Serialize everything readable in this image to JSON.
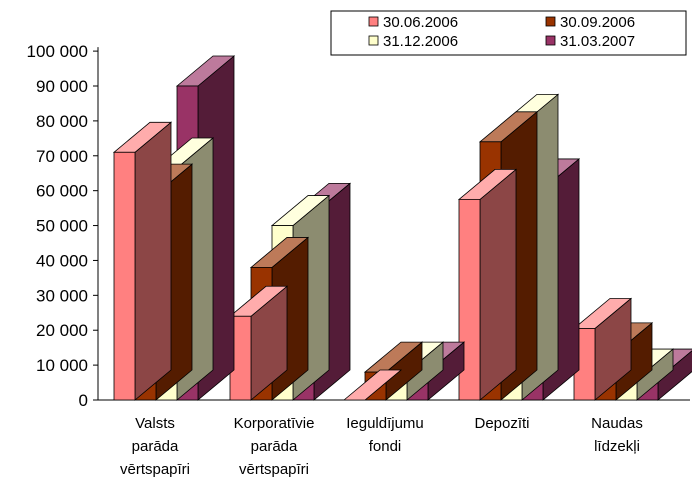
{
  "chart_data": {
    "type": "bar",
    "subtype": "3d-clustered-column",
    "categories": [
      [
        "Valsts",
        "parāda",
        "vērtspapīri"
      ],
      [
        "Korporatīvie",
        "parāda",
        "vērtspapīri"
      ],
      [
        "Ieguldījumu",
        "fondi"
      ],
      [
        "Depozīti"
      ],
      [
        "Naudas",
        "līdzekļi"
      ]
    ],
    "series": [
      {
        "name": "30.06.2006",
        "color": "#ff8080",
        "values": [
          71000,
          24000,
          0,
          57500,
          20500
        ]
      },
      {
        "name": "30.09.2006",
        "color": "#993300",
        "values": [
          59000,
          38000,
          8000,
          74000,
          13500
        ]
      },
      {
        "name": "31.12.2006",
        "color": "#ffffcc",
        "values": [
          66500,
          50000,
          8000,
          79000,
          6000
        ]
      },
      {
        "name": "31.03.2007",
        "color": "#993366",
        "values": [
          90000,
          53500,
          8000,
          60500,
          6000
        ]
      }
    ],
    "ylim": [
      0,
      100000
    ],
    "yticks": [
      0,
      10000,
      20000,
      30000,
      40000,
      50000,
      60000,
      70000,
      80000,
      90000,
      100000
    ],
    "ytick_labels": [
      "0",
      "10 000",
      "20 000",
      "30 000",
      "40 000",
      "50 000",
      "60 000",
      "70 000",
      "80 000",
      "90 000",
      "100 000"
    ],
    "legend_position": "top-right",
    "grid": false,
    "title": "",
    "xlabel": "",
    "ylabel": ""
  }
}
